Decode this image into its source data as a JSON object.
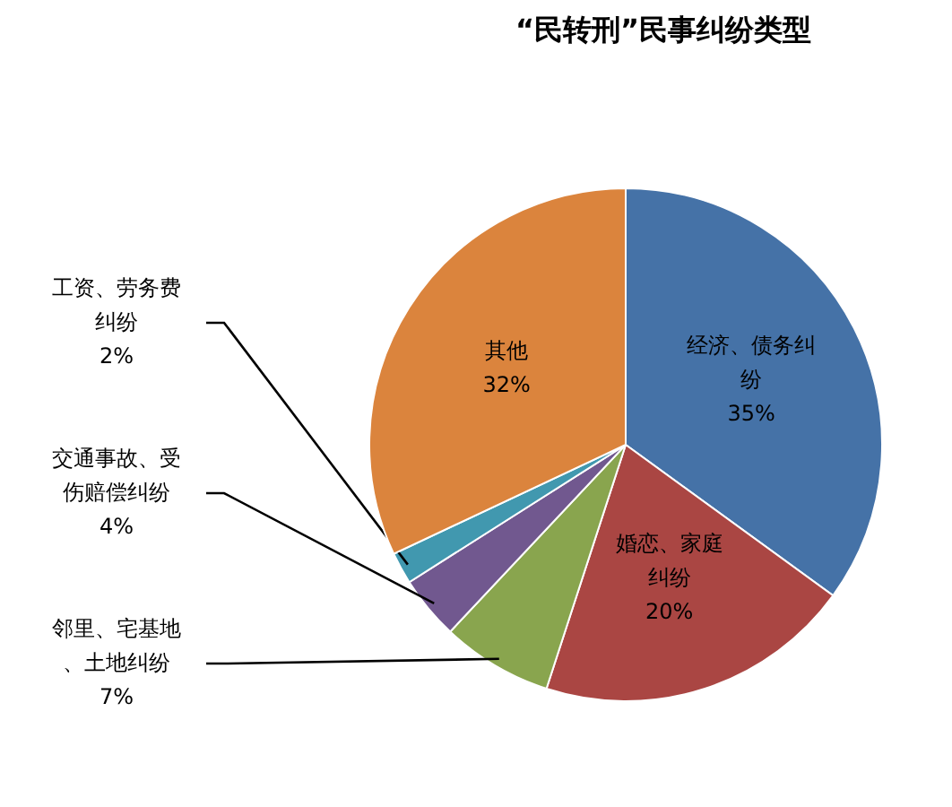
{
  "chart_data": {
    "type": "pie",
    "title": "“民转刑”民事纠纷类型",
    "categories": [
      "经济、债务纠纷",
      "婚恋、家庭纠纷",
      "邻里、宅基地、土地纠纷",
      "交通事故、受伤赔偿纠纷",
      "工资、劳务费纠纷",
      "其他"
    ],
    "values": [
      35,
      20,
      7,
      4,
      2,
      32
    ],
    "colors": [
      "#4572a7",
      "#aa4643",
      "#89a54e",
      "#71588f",
      "#4198af",
      "#db843d"
    ],
    "value_labels": [
      "35%",
      "20%",
      "7%",
      "4%",
      "2%",
      "32%"
    ]
  }
}
